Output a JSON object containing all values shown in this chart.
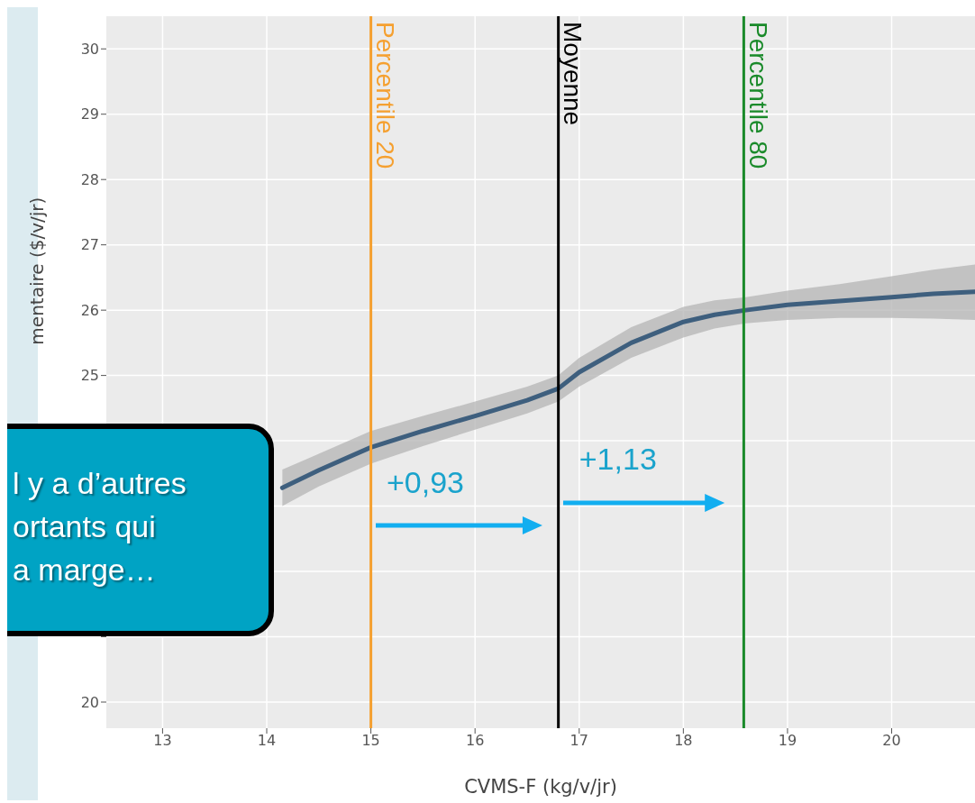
{
  "chart_data": {
    "type": "line",
    "xlabel": "CVMS-F (kg/v/jr)",
    "ylabel": "mentaire ($/v/jr)",
    "xlim": [
      12.46,
      20.8
    ],
    "xticks": [
      13,
      14,
      15,
      16,
      17,
      18,
      19,
      20
    ],
    "ylim": [
      19.6,
      30.5
    ],
    "yticks": [
      20,
      {
        "value": 21,
        "label": null
      },
      {
        "value": 22,
        "label": null
      },
      {
        "value": 23,
        "label": null
      },
      {
        "value": 24,
        "label": null
      },
      25,
      26,
      27,
      28,
      29,
      30
    ],
    "grid": true,
    "series": [
      {
        "color": "#3e5f7e",
        "x": [
          14.15,
          14.5,
          15,
          15.5,
          16,
          16.5,
          16.8,
          17,
          17.5,
          18,
          18.3,
          18.6,
          19,
          19.5,
          20,
          20.4,
          20.8
        ],
        "values": [
          23.28,
          23.55,
          23.9,
          24.15,
          24.38,
          24.62,
          24.8,
          25.05,
          25.5,
          25.82,
          25.93,
          26.0,
          26.08,
          26.14,
          26.2,
          26.25,
          26.28
        ],
        "lower": [
          23.0,
          23.3,
          23.65,
          23.92,
          24.17,
          24.42,
          24.6,
          24.83,
          25.27,
          25.58,
          25.72,
          25.8,
          25.85,
          25.88,
          25.88,
          25.87,
          25.85
        ],
        "upper": [
          23.56,
          23.8,
          24.15,
          24.38,
          24.6,
          24.83,
          25.0,
          25.27,
          25.74,
          26.05,
          26.15,
          26.2,
          26.3,
          26.4,
          26.52,
          26.62,
          26.7
        ]
      }
    ],
    "ref_lines": [
      {
        "axis": "x",
        "value": 15,
        "label": "Percentile 20",
        "color": "#f5a030"
      },
      {
        "axis": "x",
        "value": 16.8,
        "label": "Moyenne",
        "color": "#000000"
      },
      {
        "axis": "x",
        "value": 18.58,
        "label": "Percentile 80",
        "color": "#1a8a2a"
      }
    ],
    "annotations": [
      "+0,93",
      "+1,13",
      "l y a d’autres\nortants qui\na marge…"
    ]
  }
}
